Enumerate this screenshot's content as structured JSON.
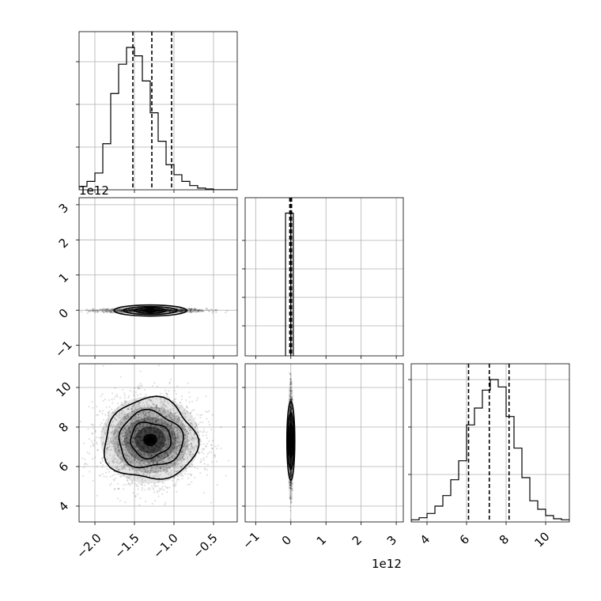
{
  "chart_data": {
    "type": "corner",
    "params": [
      {
        "id": "p0",
        "range": [
          -2.2,
          -0.2
        ],
        "ticks": [
          -2.0,
          -1.5,
          -1.0,
          -0.5
        ],
        "tick_labels": [
          "−2.0",
          "−1.5",
          "−1.0",
          "−0.5"
        ],
        "quantiles": [
          -1.52,
          -1.28,
          -1.03
        ]
      },
      {
        "id": "p1",
        "range": [
          -1300000000000.0,
          3200000000000.0
        ],
        "ticks": [
          -1000000000000.0,
          0,
          1000000000000.0,
          2000000000000.0,
          3000000000000.0
        ],
        "tick_labels": [
          "−1",
          "0",
          "1",
          "2",
          "3"
        ],
        "offset_text": "1e12",
        "quantiles": [
          -30000000000.0,
          -10000000000.0,
          20000000000.0
        ]
      },
      {
        "id": "p2",
        "range": [
          3.2,
          11.2
        ],
        "ticks": [
          4,
          6,
          8,
          10
        ],
        "tick_labels": [
          "4",
          "6",
          "8",
          "10"
        ],
        "quantiles": [
          6.1,
          7.15,
          8.15
        ]
      }
    ],
    "hist_p0": {
      "edges_start": -2.2,
      "bin_width": 0.1,
      "counts": [
        4,
        10,
        20,
        55,
        115,
        150,
        170,
        160,
        130,
        92,
        58,
        30,
        18,
        10,
        5,
        2,
        1,
        0,
        0,
        0
      ]
    },
    "hist_p1": {
      "bins": [
        {
          "x0": -150000000000.0,
          "x1": 0.0,
          "count": 0.95
        },
        {
          "x0": 0.0,
          "x1": 70000000000.0,
          "count": 0.95
        }
      ]
    },
    "hist_p2": {
      "edges_start": 3.2,
      "bin_width": 0.4,
      "counts": [
        2,
        4,
        8,
        15,
        25,
        40,
        58,
        92,
        108,
        125,
        135,
        128,
        100,
        70,
        42,
        20,
        12,
        6,
        3,
        2
      ]
    },
    "scatter_p0_p2": {
      "center": [
        -1.3,
        7.35
      ],
      "spread": [
        0.3,
        1.05
      ]
    },
    "scatter_p0_p1": {
      "center": [
        -1.3,
        -10000000000.0
      ],
      "spread": [
        0.35,
        30000000000.0
      ]
    },
    "scatter_p1_p2": {
      "center": [
        0.0,
        7.3
      ],
      "spread": [
        20000000000.0,
        1.2
      ]
    }
  }
}
